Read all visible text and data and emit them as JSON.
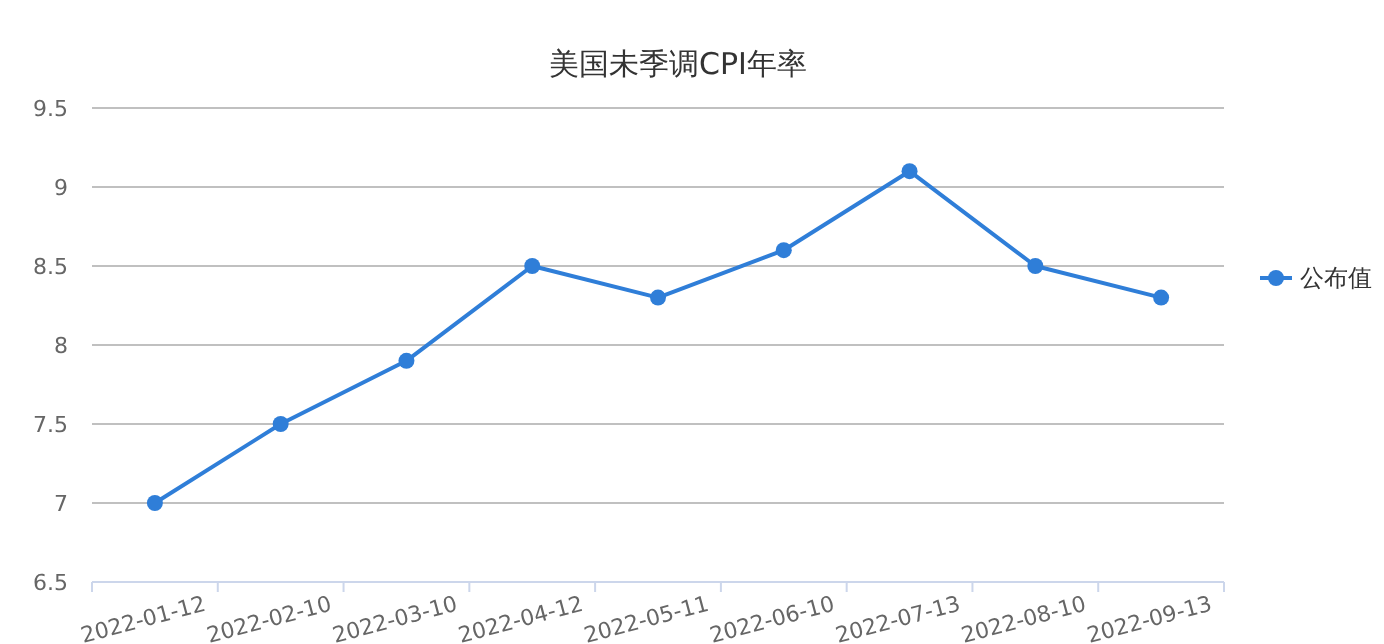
{
  "chart_data": {
    "type": "line",
    "title": "美国未季调CPI年率",
    "categories": [
      "2022-01-12",
      "2022-02-10",
      "2022-03-10",
      "2022-04-12",
      "2022-05-11",
      "2022-06-10",
      "2022-07-13",
      "2022-08-10",
      "2022-09-13"
    ],
    "series": [
      {
        "name": "公布值",
        "color": "#2f7ed8",
        "values": [
          7,
          7.5,
          7.9,
          8.5,
          8.3,
          8.6,
          9.1,
          8.5,
          8.3
        ]
      }
    ],
    "ylim": [
      6.5,
      9.5
    ],
    "yticks": [
      6.5,
      7,
      7.5,
      8,
      8.5,
      9,
      9.5
    ],
    "grid": "y",
    "legend": "right",
    "marker": "circle",
    "line_style": "solid"
  }
}
